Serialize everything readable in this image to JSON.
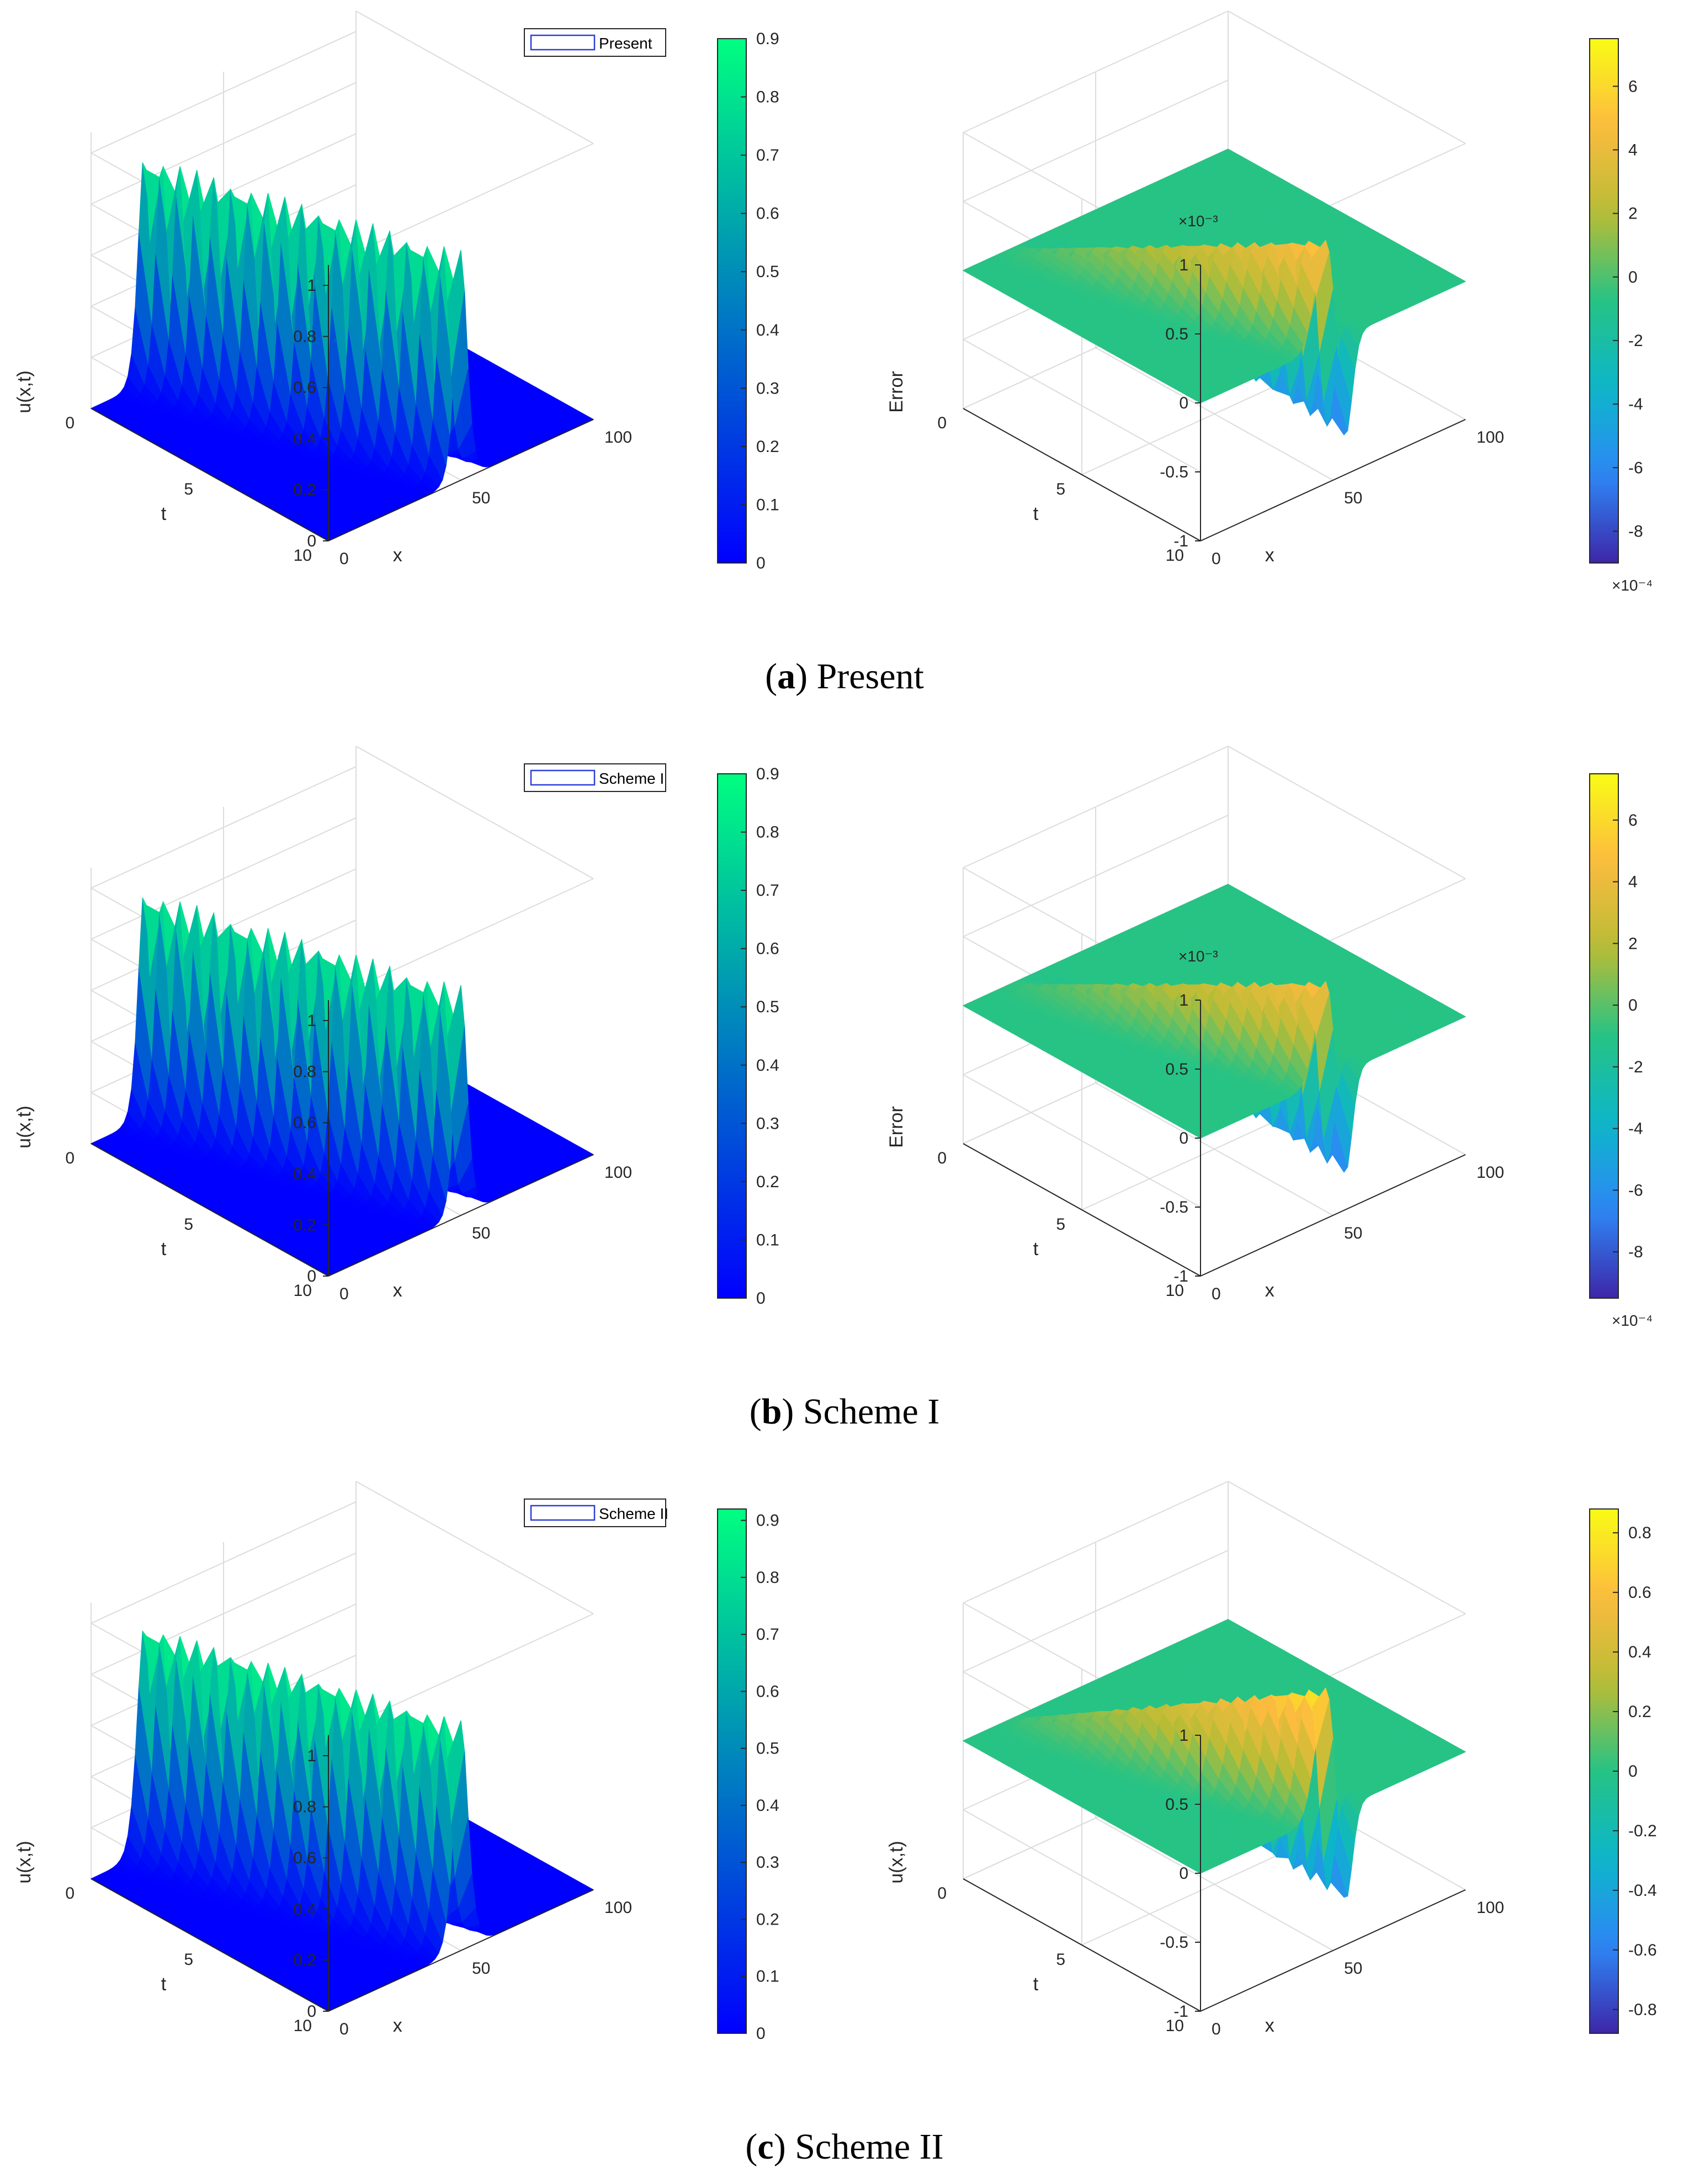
{
  "captions": [
    {
      "letter": "a",
      "text": "Present"
    },
    {
      "letter": "b",
      "text": "Scheme I"
    },
    {
      "letter": "c",
      "text": "Scheme II"
    }
  ],
  "colors": {
    "winter_low": "#0000ff",
    "winter_high": "#00ff80",
    "parula": [
      "#3e26a8",
      "#2e87f7",
      "#0cb6c9",
      "#26c385",
      "#b8bc35",
      "#fcbb3f",
      "#f9fb15"
    ],
    "axis": "#262626",
    "grid": "#dcdcdc"
  },
  "chart_data": [
    {
      "id": "a-left",
      "type": "surface",
      "colormap": "winter",
      "zlabel": "u(x,t)",
      "xlabel": "x",
      "ylabel": "t",
      "z_ticks": [
        "0",
        "0.2",
        "0.4",
        "0.6",
        "0.8",
        "1"
      ],
      "x_ticks": [
        "0",
        "50",
        "100"
      ],
      "t_ticks": [
        "0",
        "5",
        "10"
      ],
      "x_range": [
        0,
        100
      ],
      "t_range": [
        0,
        10
      ],
      "z_range": [
        0,
        1
      ],
      "legend": "Present",
      "legend_position": "top-right",
      "colorbar_ticks": [
        "0",
        "0.1",
        "0.2",
        "0.3",
        "0.4",
        "0.5",
        "0.6",
        "0.7",
        "0.8",
        "0.9"
      ],
      "colorbar_range": [
        0,
        0.9
      ],
      "solution": {
        "amplitude": 0.9,
        "x0": 20,
        "speed": 3,
        "width": 3
      }
    },
    {
      "id": "a-right",
      "type": "surface",
      "colormap": "parula",
      "zlabel": "Error",
      "xlabel": "x",
      "ylabel": "t",
      "z_exponent": "×10⁻³",
      "z_ticks": [
        "-1",
        "-0.5",
        "0",
        "0.5",
        "1"
      ],
      "x_ticks": [
        "0",
        "50",
        "100"
      ],
      "t_ticks": [
        "0",
        "5",
        "10"
      ],
      "colorbar_ticks": [
        "-8",
        "-6",
        "-4",
        "-2",
        "0",
        "2",
        "4",
        "6"
      ],
      "colorbar_exponent": "×10⁻⁴",
      "colorbar_range": [
        -9,
        7.5
      ],
      "error": {
        "pos_peak": 0.00075,
        "neg_peak": -0.0009
      }
    },
    {
      "id": "b-left",
      "type": "surface",
      "colormap": "winter",
      "zlabel": "u(x,t)",
      "xlabel": "x",
      "ylabel": "t",
      "z_ticks": [
        "0",
        "0.2",
        "0.4",
        "0.6",
        "0.8",
        "1"
      ],
      "x_ticks": [
        "0",
        "50",
        "100"
      ],
      "t_ticks": [
        "0",
        "5",
        "10"
      ],
      "legend": "Scheme I",
      "legend_position": "top-right",
      "colorbar_ticks": [
        "0",
        "0.1",
        "0.2",
        "0.3",
        "0.4",
        "0.5",
        "0.6",
        "0.7",
        "0.8",
        "0.9"
      ],
      "colorbar_range": [
        0,
        0.9
      ],
      "solution": {
        "amplitude": 0.9,
        "x0": 20,
        "speed": 3,
        "width": 3
      }
    },
    {
      "id": "b-right",
      "type": "surface",
      "colormap": "parula",
      "zlabel": "Error",
      "xlabel": "x",
      "ylabel": "t",
      "z_exponent": "×10⁻³",
      "z_ticks": [
        "-1",
        "-0.5",
        "0",
        "0.5",
        "1"
      ],
      "x_ticks": [
        "0",
        "50",
        "100"
      ],
      "t_ticks": [
        "0",
        "5",
        "10"
      ],
      "colorbar_ticks": [
        "-8",
        "-6",
        "-4",
        "-2",
        "0",
        "2",
        "4",
        "6"
      ],
      "colorbar_exponent": "×10⁻⁴",
      "colorbar_range": [
        -9.5,
        7.5
      ],
      "error": {
        "pos_peak": 0.00075,
        "neg_peak": -0.00095
      }
    },
    {
      "id": "c-left",
      "type": "surface",
      "colormap": "winter",
      "zlabel": "u(x,t)",
      "xlabel": "x",
      "ylabel": "t",
      "z_ticks": [
        "0",
        "0.2",
        "0.4",
        "0.6",
        "0.8",
        "1"
      ],
      "x_ticks": [
        "0",
        "50",
        "100"
      ],
      "t_ticks": [
        "0",
        "5",
        "10"
      ],
      "legend": "Scheme II",
      "legend_position": "top-right",
      "colorbar_ticks": [
        "0",
        "0.1",
        "0.2",
        "0.3",
        "0.4",
        "0.5",
        "0.6",
        "0.7",
        "0.8",
        "0.9"
      ],
      "colorbar_range": [
        0,
        0.92
      ],
      "solution": {
        "amplitude": 0.9,
        "x0": 20,
        "speed": 3,
        "width": 3.5
      }
    },
    {
      "id": "c-right",
      "type": "surface",
      "colormap": "parula",
      "zlabel": "u(x,t)",
      "xlabel": "x",
      "ylabel": "t",
      "z_ticks": [
        "-1",
        "-0.5",
        "0",
        "0.5",
        "1"
      ],
      "x_ticks": [
        "0",
        "50",
        "100"
      ],
      "t_ticks": [
        "0",
        "5",
        "10"
      ],
      "colorbar_ticks": [
        "-0.8",
        "-0.6",
        "-0.4",
        "-0.2",
        "0",
        "0.2",
        "0.4",
        "0.6",
        "0.8"
      ],
      "colorbar_range": [
        -0.88,
        0.88
      ],
      "error": {
        "pos_peak": 0.88,
        "neg_peak": -0.88
      }
    }
  ]
}
